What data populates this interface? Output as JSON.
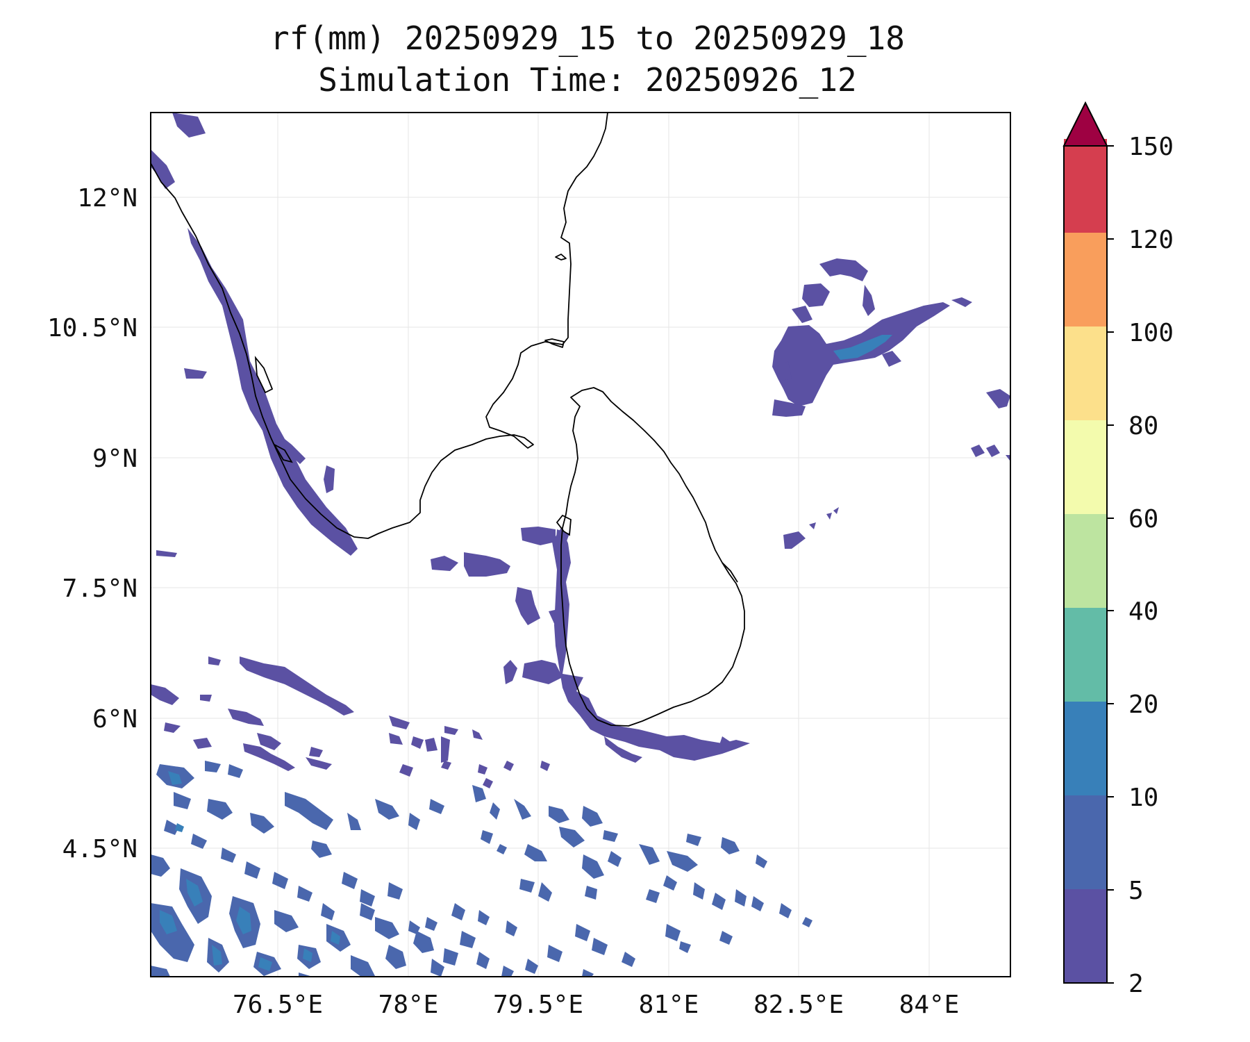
{
  "title": {
    "line1": "rf(mm) 20250929_15 to 20250929_18",
    "line2": "Simulation Time: 20250926_12"
  },
  "map": {
    "lat_ticks": [
      "12°N",
      "10.5°N",
      "9°N",
      "7.5°N",
      "6°N",
      "4.5°N"
    ],
    "lon_ticks": [
      "76.5°E",
      "78°E",
      "79.5°E",
      "81°E",
      "82.5°E",
      "84°E"
    ],
    "lon_range": [
      75.0,
      84.9
    ],
    "lat_range": [
      3.2,
      13.15
    ],
    "coastline_color": "#000000",
    "gridline_color": "#e6e6e6"
  },
  "colorbar": {
    "levels": [
      "2",
      "5",
      "10",
      "20",
      "40",
      "60",
      "80",
      "100",
      "120",
      "150"
    ],
    "colors": [
      "#5b51a3",
      "#4a67ad",
      "#3880b9",
      "#63bca7",
      "#bde4a0",
      "#f3fbad",
      "#fce08b",
      "#f99e5c",
      "#d53e4f",
      "#9e0142"
    ],
    "extend": "max"
  }
}
